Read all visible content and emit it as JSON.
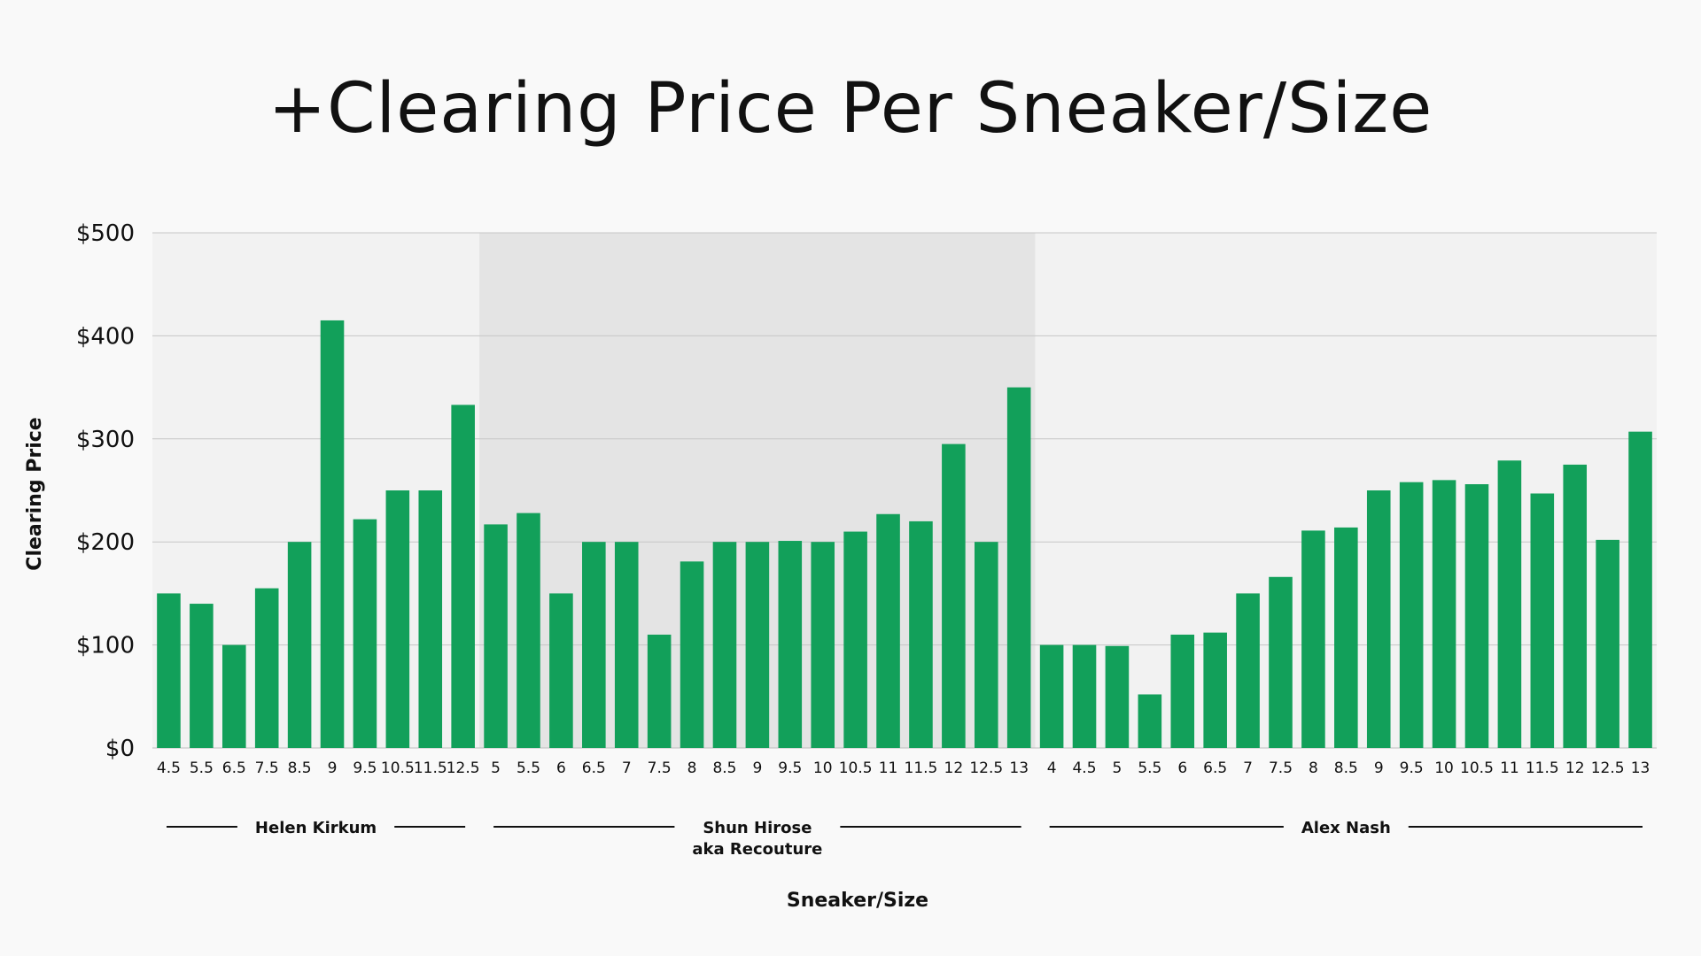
{
  "chart_data": {
    "type": "bar",
    "title": "+Clearing Price Per Sneaker/Size",
    "xlabel": "Sneaker/Size",
    "ylabel": "Clearing Price",
    "ylim": [
      0,
      500
    ],
    "yticks": [
      "$0",
      "$100",
      "$200",
      "$300",
      "$400",
      "$500"
    ],
    "grid": true,
    "bar_color": "#12a05a",
    "band_colors": [
      "#f2f2f2",
      "#e4e4e4",
      "#f2f2f2"
    ],
    "groups": [
      {
        "label": [
          "Helen Kirkum"
        ],
        "categories": [
          "4.5",
          "5.5",
          "6.5",
          "7.5",
          "8.5",
          "9",
          "9.5",
          "10.5",
          "11.5",
          "12.5"
        ],
        "values": [
          150,
          140,
          100,
          155,
          200,
          415,
          222,
          250,
          250,
          333
        ]
      },
      {
        "label": [
          "Shun Hirose",
          "aka Recouture"
        ],
        "categories": [
          "5",
          "5.5",
          "6",
          "6.5",
          "7",
          "7.5",
          "8",
          "8.5",
          "9",
          "9.5",
          "10",
          "10.5",
          "11",
          "11.5",
          "12",
          "12.5",
          "13"
        ],
        "values": [
          217,
          228,
          150,
          200,
          200,
          110,
          181,
          200,
          200,
          201,
          200,
          210,
          227,
          220,
          295,
          200,
          350
        ]
      },
      {
        "label": [
          "Alex Nash"
        ],
        "categories": [
          "4",
          "4.5",
          "5",
          "5.5",
          "6",
          "6.5",
          "7",
          "7.5",
          "8",
          "8.5",
          "9",
          "9.5",
          "10",
          "10.5",
          "11",
          "11.5",
          "12",
          "12.5",
          "13"
        ],
        "values": [
          100,
          100,
          99,
          52,
          110,
          112,
          150,
          166,
          211,
          214,
          250,
          258,
          260,
          256,
          279,
          247,
          275,
          202,
          307
        ]
      }
    ]
  }
}
